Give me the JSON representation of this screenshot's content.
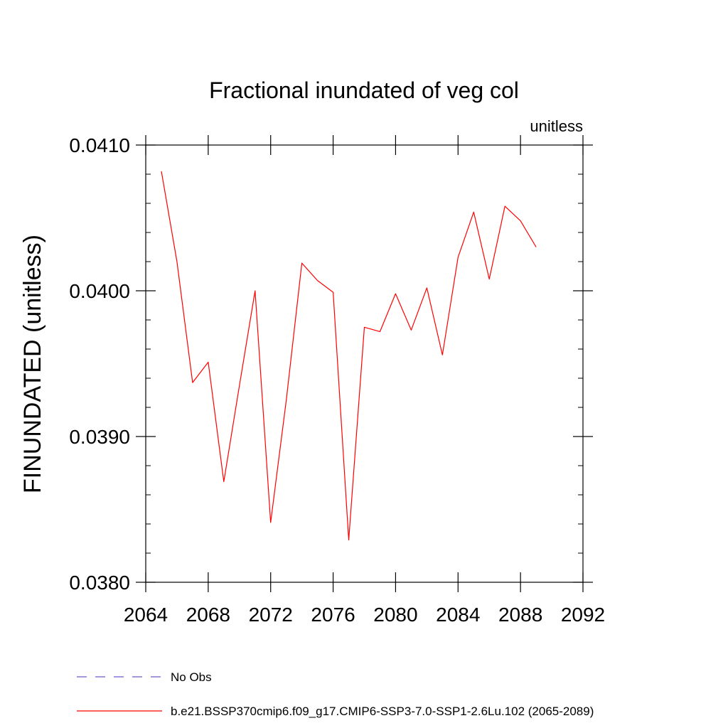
{
  "chart_data": {
    "type": "line",
    "title": "Fractional inundated of veg col",
    "units_label": "unitless",
    "ylabel": "FINUNDATED  (unitless)",
    "xlabel": "",
    "xlim": [
      2064,
      2092
    ],
    "ylim": [
      0.038,
      0.041
    ],
    "x_ticks": [
      2064,
      2068,
      2072,
      2076,
      2080,
      2084,
      2088,
      2092
    ],
    "x_tick_labels": [
      "2064",
      "2068",
      "2072",
      "2076",
      "2080",
      "2084",
      "2088",
      "2092"
    ],
    "y_ticks": [
      0.038,
      0.039,
      0.04,
      0.041
    ],
    "y_tick_labels": [
      "0.0380",
      "0.0390",
      "0.0400",
      "0.0410"
    ],
    "grid": false,
    "legend_position": "bottom",
    "series": [
      {
        "name": "b.e21.BSSP370cmip6.f09_g17.CMIP6-SSP3-7.0-SSP1-2.6Lu.102 (2065-2089)",
        "color": "#ff0000",
        "x": [
          2065,
          2066,
          2067,
          2068,
          2069,
          2070,
          2071,
          2072,
          2073,
          2074,
          2075,
          2076,
          2077,
          2078,
          2079,
          2080,
          2081,
          2082,
          2083,
          2084,
          2085,
          2086,
          2087,
          2088,
          2089
        ],
        "y": [
          0.04082,
          0.0402,
          0.03937,
          0.03951,
          0.03869,
          0.03935,
          0.04,
          0.03841,
          0.03925,
          0.04019,
          0.04007,
          0.03999,
          0.03829,
          0.03975,
          0.03972,
          0.03998,
          0.03973,
          0.04002,
          0.03956,
          0.04023,
          0.04054,
          0.04008,
          0.04058,
          0.04048,
          0.0403
        ]
      }
    ],
    "legend": [
      {
        "label": "No Obs",
        "color": "#6a5acd",
        "style": "dashed"
      },
      {
        "label": "b.e21.BSSP370cmip6.f09_g17.CMIP6-SSP3-7.0-SSP1-2.6Lu.102 (2065-2089)",
        "color": "#ff0000",
        "style": "solid"
      }
    ]
  }
}
